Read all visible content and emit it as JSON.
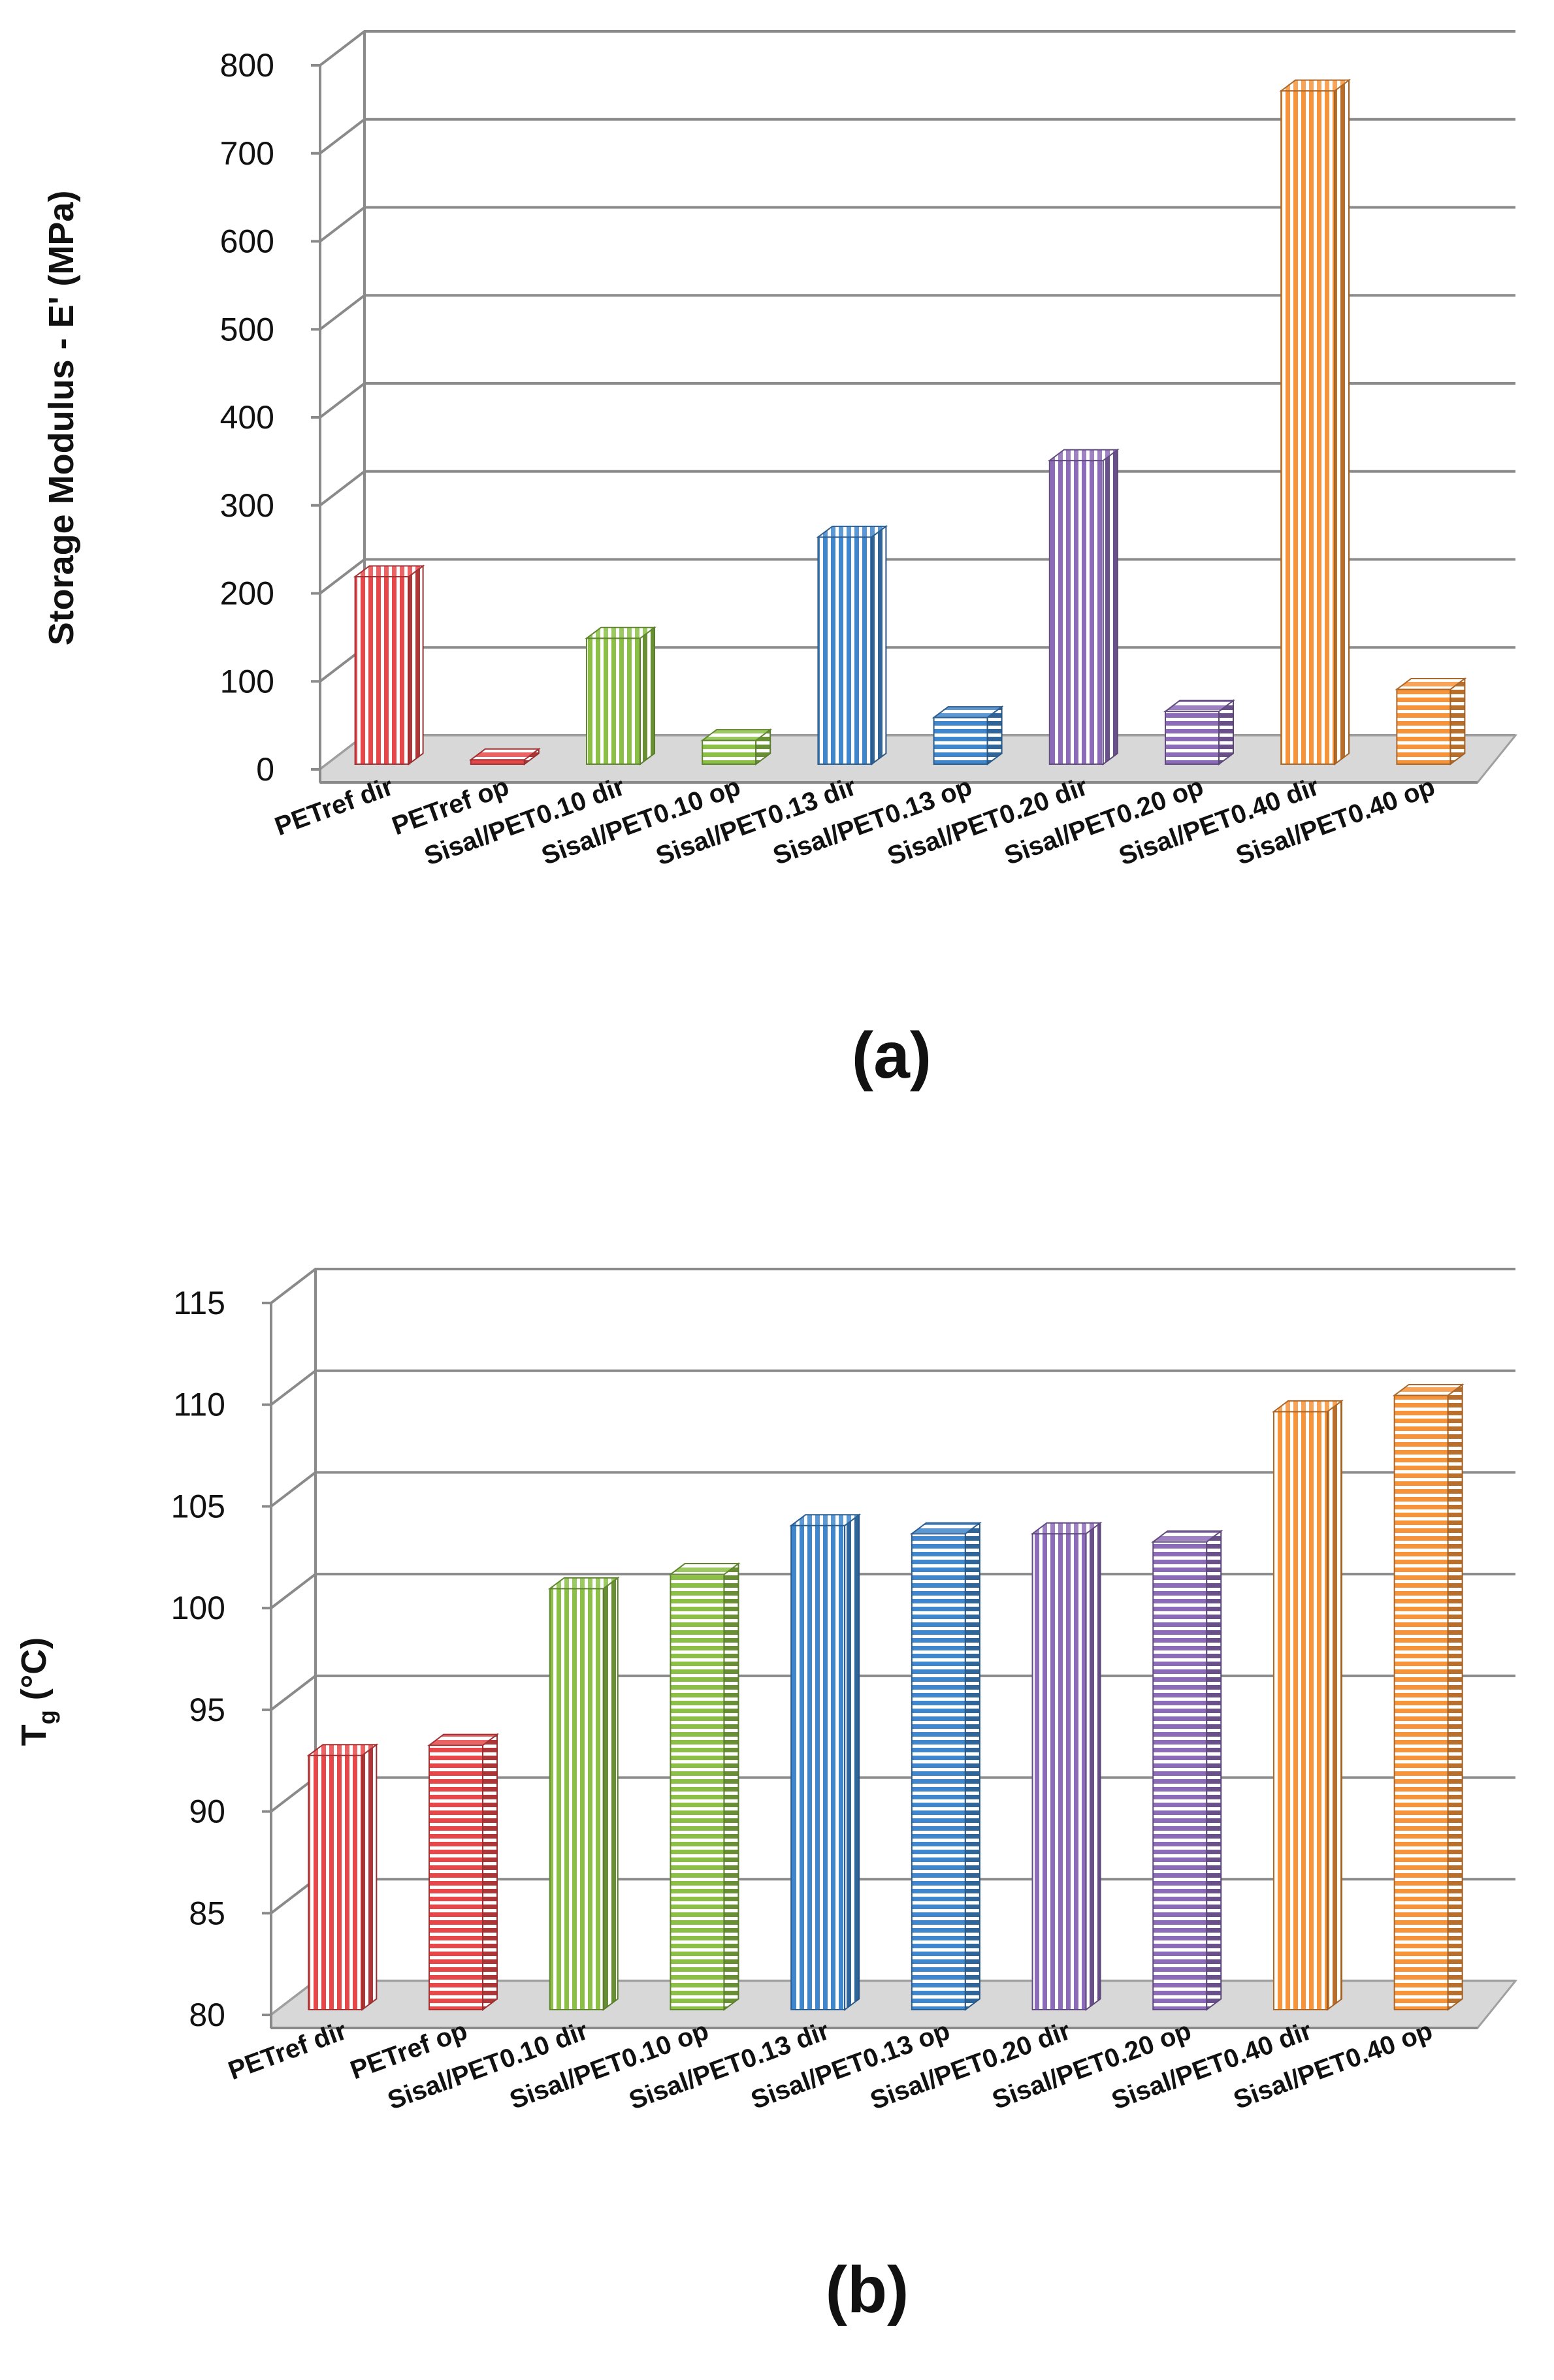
{
  "chart_data": [
    {
      "type": "bar",
      "panel_label": "(a)",
      "title": "",
      "xlabel": "",
      "ylabel": "Storage Modulus - E' (MPa)",
      "ylim": [
        0,
        800
      ],
      "yticks": [
        0,
        100,
        200,
        300,
        400,
        500,
        600,
        700,
        800
      ],
      "grid": true,
      "categories": [
        "PETref dir",
        "PETref op",
        "Sisal/PET0.10 dir",
        "Sisal/PET0.10 op",
        "Sisal/PET0.13 dir",
        "Sisal/PET0.13 op",
        "Sisal/PET0.20 dir",
        "Sisal/PET0.20 op",
        "Sisal/PET0.40 dir",
        "Sisal/PET0.40 op"
      ],
      "values": [
        213,
        5,
        143,
        27,
        258,
        53,
        345,
        60,
        765,
        85
      ],
      "colors": [
        "#e8474a",
        "#e8474a",
        "#8bbf45",
        "#8bbf45",
        "#3f86cc",
        "#3f86cc",
        "#8c6bb8",
        "#8c6bb8",
        "#f7943a",
        "#f7943a"
      ],
      "patterns": [
        "vertical",
        "horizontal",
        "vertical",
        "horizontal",
        "vertical",
        "horizontal",
        "vertical",
        "horizontal",
        "vertical",
        "horizontal"
      ]
    },
    {
      "type": "bar",
      "panel_label": "(b)",
      "title": "",
      "xlabel": "",
      "ylabel_main": "T",
      "ylabel_sub": "g",
      "ylabel_unit": " (°C)",
      "ylim": [
        80,
        115
      ],
      "yticks": [
        80,
        85,
        90,
        95,
        100,
        105,
        110,
        115
      ],
      "grid": true,
      "categories": [
        "PETref dir",
        "PETref op",
        "Sisal/PET0.10 dir",
        "Sisal/PET0.10 op",
        "Sisal/PET0.13 dir",
        "Sisal/PET0.13 op",
        "Sisal/PET0.20 dir",
        "Sisal/PET0.20 op",
        "Sisal/PET0.40 dir",
        "Sisal/PET0.40 op"
      ],
      "values": [
        92.5,
        93.0,
        100.7,
        101.4,
        103.8,
        103.4,
        103.4,
        103.0,
        109.4,
        110.2
      ],
      "colors": [
        "#e8474a",
        "#e8474a",
        "#8bbf45",
        "#8bbf45",
        "#3f86cc",
        "#3f86cc",
        "#8c6bb8",
        "#8c6bb8",
        "#f7943a",
        "#f7943a"
      ],
      "patterns": [
        "vertical",
        "horizontal",
        "vertical",
        "horizontal",
        "vertical",
        "horizontal",
        "vertical",
        "horizontal",
        "vertical",
        "horizontal"
      ]
    }
  ]
}
